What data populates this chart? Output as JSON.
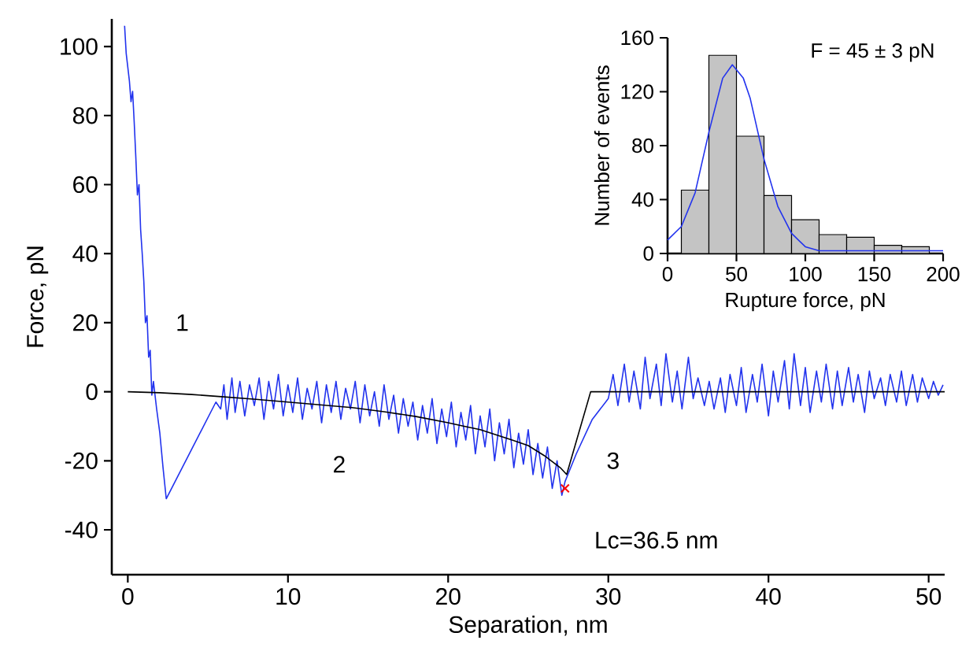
{
  "chart_data": [
    {
      "type": "line",
      "xlabel": "Separation, nm",
      "ylabel": "Force, pN",
      "xlim": [
        -1,
        51
      ],
      "ylim": [
        -53,
        108
      ],
      "xticks": [
        0,
        10,
        20,
        30,
        40,
        50
      ],
      "yticks": [
        -40,
        -20,
        0,
        20,
        40,
        60,
        80,
        100
      ],
      "series": [
        {
          "color": "#2233ee",
          "x": [
            -0.2,
            -0.1,
            0.1,
            0.2,
            0.3,
            0.4,
            0.5,
            0.6,
            0.7,
            0.8,
            0.9,
            1.0,
            1.1,
            1.2,
            1.3,
            1.4,
            1.5,
            1.6,
            1.8,
            2.0,
            2.2,
            2.4,
            5.5,
            5.8,
            6.0,
            6.2,
            6.5,
            6.7,
            7.0,
            7.3,
            7.6,
            7.9,
            8.2,
            8.5,
            8.8,
            9.1,
            9.4,
            9.7,
            10.0,
            10.3,
            10.6,
            10.9,
            11.2,
            11.5,
            11.8,
            12.1,
            12.4,
            12.7,
            13.0,
            13.3,
            13.6,
            13.9,
            14.2,
            14.5,
            14.8,
            15.1,
            15.4,
            15.7,
            16.0,
            16.3,
            16.6,
            16.9,
            17.2,
            17.5,
            17.8,
            18.1,
            18.4,
            18.7,
            19.0,
            19.3,
            19.6,
            19.9,
            20.2,
            20.5,
            20.8,
            21.1,
            21.4,
            21.7,
            22.0,
            22.3,
            22.6,
            22.9,
            23.2,
            23.5,
            23.8,
            24.1,
            24.4,
            24.7,
            25.0,
            25.3,
            25.6,
            25.9,
            26.2,
            26.5,
            26.8,
            27.1,
            27.3,
            28.0,
            29.0,
            30.0,
            30.3,
            30.6,
            31.0,
            31.3,
            31.6,
            32.0,
            32.3,
            32.6,
            33.0,
            33.3,
            33.6,
            34.0,
            34.3,
            34.6,
            35.0,
            35.3,
            35.6,
            36.0,
            36.3,
            36.6,
            37.0,
            37.3,
            37.6,
            38.0,
            38.3,
            38.6,
            39.0,
            39.3,
            39.6,
            40.0,
            40.3,
            40.6,
            41.0,
            41.3,
            41.6,
            42.0,
            42.3,
            42.6,
            43.0,
            43.3,
            43.6,
            44.0,
            44.3,
            44.6,
            45.0,
            45.3,
            45.6,
            46.0,
            46.3,
            46.6,
            47.0,
            47.3,
            47.6,
            48.0,
            48.3,
            48.6,
            49.0,
            49.3,
            49.6,
            50.0,
            50.3,
            50.6,
            50.9
          ],
          "values": [
            106,
            98,
            90,
            84,
            87,
            78,
            68,
            57,
            60,
            47,
            40,
            32,
            20,
            22,
            10,
            12,
            -1,
            3,
            -5,
            -12,
            -22,
            -31,
            -3,
            -5,
            2,
            -8,
            4,
            -6,
            3,
            -7,
            2,
            -4,
            4,
            -8,
            3,
            -5,
            5,
            -7,
            2,
            -6,
            4,
            -8,
            1,
            -5,
            3,
            -9,
            2,
            -6,
            3,
            -8,
            1,
            -5,
            3,
            -9,
            2,
            -7,
            0,
            -10,
            2,
            -8,
            -1,
            -12,
            -2,
            -10,
            -3,
            -14,
            -4,
            -12,
            -2,
            -15,
            -5,
            -13,
            -3,
            -16,
            -6,
            -14,
            -4,
            -18,
            -7,
            -16,
            -5,
            -20,
            -9,
            -18,
            -8,
            -22,
            -12,
            -21,
            -11,
            -24,
            -15,
            -25,
            -16,
            -28,
            -20,
            -30,
            -26,
            -18,
            -8,
            -2,
            5,
            -4,
            8,
            -3,
            6,
            -5,
            10,
            -2,
            8,
            -4,
            11,
            -3,
            6,
            -5,
            10,
            -2,
            4,
            -4,
            3,
            -5,
            4,
            -6,
            5,
            -4,
            7,
            -6,
            5,
            -3,
            8,
            -7,
            6,
            -3,
            9,
            -5,
            11,
            -4,
            7,
            -6,
            6,
            -3,
            8,
            -5,
            6,
            -4,
            7,
            -3,
            5,
            -6,
            6,
            -2,
            4,
            -4,
            5,
            -3,
            6,
            -4,
            5,
            -3,
            4,
            -2,
            3,
            -1,
            2
          ]
        },
        {
          "color": "#000000",
          "x": [
            0,
            2,
            4,
            6,
            8,
            10,
            12,
            14,
            16,
            18,
            20,
            21,
            22,
            23,
            24,
            25,
            26,
            27,
            27.4,
            28.9,
            51
          ],
          "values": [
            0,
            -0.3,
            -0.8,
            -1.5,
            -2.2,
            -3,
            -3.8,
            -4.6,
            -5.8,
            -7.2,
            -9,
            -10,
            -11,
            -12.5,
            -14,
            -15.6,
            -18.5,
            -22,
            -24,
            0,
            0
          ]
        },
        {
          "type": "scatter",
          "marker": "cross",
          "color": "#ff0000",
          "x": [
            27.3
          ],
          "values": [
            -28
          ]
        }
      ],
      "annotations": [
        "1",
        "2",
        "3",
        "Lc=36.5 nm"
      ]
    },
    {
      "type": "histogram",
      "xlabel": "Rupture force, pN",
      "ylabel": "Number of events",
      "xlim": [
        0,
        200
      ],
      "ylim": [
        0,
        160
      ],
      "xticks": [
        0,
        50,
        100,
        150,
        200
      ],
      "yticks": [
        0,
        40,
        80,
        120,
        160
      ],
      "color": "#c4c4c4",
      "bins": [
        10,
        30,
        50,
        70,
        90,
        110,
        130,
        150,
        170,
        190
      ],
      "values": [
        47,
        147,
        87,
        43,
        25,
        14,
        12,
        6,
        5
      ],
      "series": [
        {
          "type": "line",
          "color": "#2233ee",
          "x": [
            0,
            10,
            20,
            30,
            40,
            47,
            55,
            60,
            70,
            80,
            90,
            100,
            110,
            200
          ],
          "values": [
            10,
            20,
            45,
            90,
            130,
            140,
            130,
            115,
            70,
            35,
            15,
            5,
            2,
            2
          ]
        }
      ],
      "annotations": [
        "F = 45 ± 3 pN"
      ]
    }
  ]
}
